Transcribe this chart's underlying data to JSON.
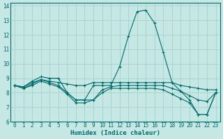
{
  "xlabel": "Humidex (Indice chaleur)",
  "bg_color": "#c5e8e5",
  "grid_color": "#aad4d0",
  "line_color": "#006b6b",
  "xlim": [
    -0.5,
    23.5
  ],
  "ylim": [
    6,
    14.2
  ],
  "xticks": [
    0,
    1,
    2,
    3,
    4,
    5,
    6,
    7,
    8,
    9,
    10,
    11,
    12,
    13,
    14,
    15,
    16,
    17,
    18,
    19,
    20,
    21,
    22,
    23
  ],
  "yticks": [
    6,
    7,
    8,
    9,
    10,
    11,
    12,
    13,
    14
  ],
  "lines": [
    {
      "x": [
        0,
        1,
        2,
        3,
        4,
        5,
        6,
        7,
        8,
        9,
        10,
        11,
        12,
        13,
        14,
        15,
        16,
        17,
        18,
        19,
        20,
        21,
        22,
        23
      ],
      "y": [
        8.5,
        8.4,
        8.8,
        9.1,
        9.0,
        9.0,
        8.0,
        7.5,
        7.5,
        8.5,
        8.5,
        8.5,
        9.8,
        11.9,
        13.6,
        13.7,
        12.8,
        10.8,
        8.7,
        8.1,
        7.5,
        6.5,
        6.5,
        8.0
      ]
    },
    {
      "x": [
        0,
        1,
        2,
        3,
        4,
        5,
        6,
        7,
        8,
        9,
        10,
        11,
        12,
        13,
        14,
        15,
        16,
        17,
        18,
        19,
        20,
        21,
        22,
        23
      ],
      "y": [
        8.5,
        8.4,
        8.7,
        8.9,
        8.8,
        8.7,
        8.6,
        8.5,
        8.5,
        8.7,
        8.7,
        8.7,
        8.7,
        8.7,
        8.7,
        8.7,
        8.7,
        8.7,
        8.7,
        8.5,
        8.4,
        8.3,
        8.2,
        8.2
      ]
    },
    {
      "x": [
        0,
        1,
        2,
        3,
        4,
        5,
        6,
        7,
        8,
        9,
        10,
        11,
        12,
        13,
        14,
        15,
        16,
        17,
        18,
        19,
        20,
        21,
        22,
        23
      ],
      "y": [
        8.5,
        8.3,
        8.6,
        8.9,
        8.7,
        8.5,
        8.0,
        7.5,
        7.5,
        7.5,
        8.2,
        8.4,
        8.5,
        8.5,
        8.5,
        8.5,
        8.5,
        8.5,
        8.3,
        8.1,
        7.8,
        7.5,
        7.4,
        8.0
      ]
    },
    {
      "x": [
        0,
        1,
        2,
        3,
        4,
        5,
        6,
        7,
        8,
        9,
        10,
        11,
        12,
        13,
        14,
        15,
        16,
        17,
        18,
        19,
        20,
        21,
        22,
        23
      ],
      "y": [
        8.5,
        8.3,
        8.5,
        8.8,
        8.6,
        8.4,
        7.9,
        7.3,
        7.3,
        7.5,
        8.0,
        8.3,
        8.3,
        8.3,
        8.3,
        8.3,
        8.3,
        8.2,
        7.9,
        7.6,
        7.3,
        6.5,
        6.5,
        8.0
      ]
    }
  ]
}
